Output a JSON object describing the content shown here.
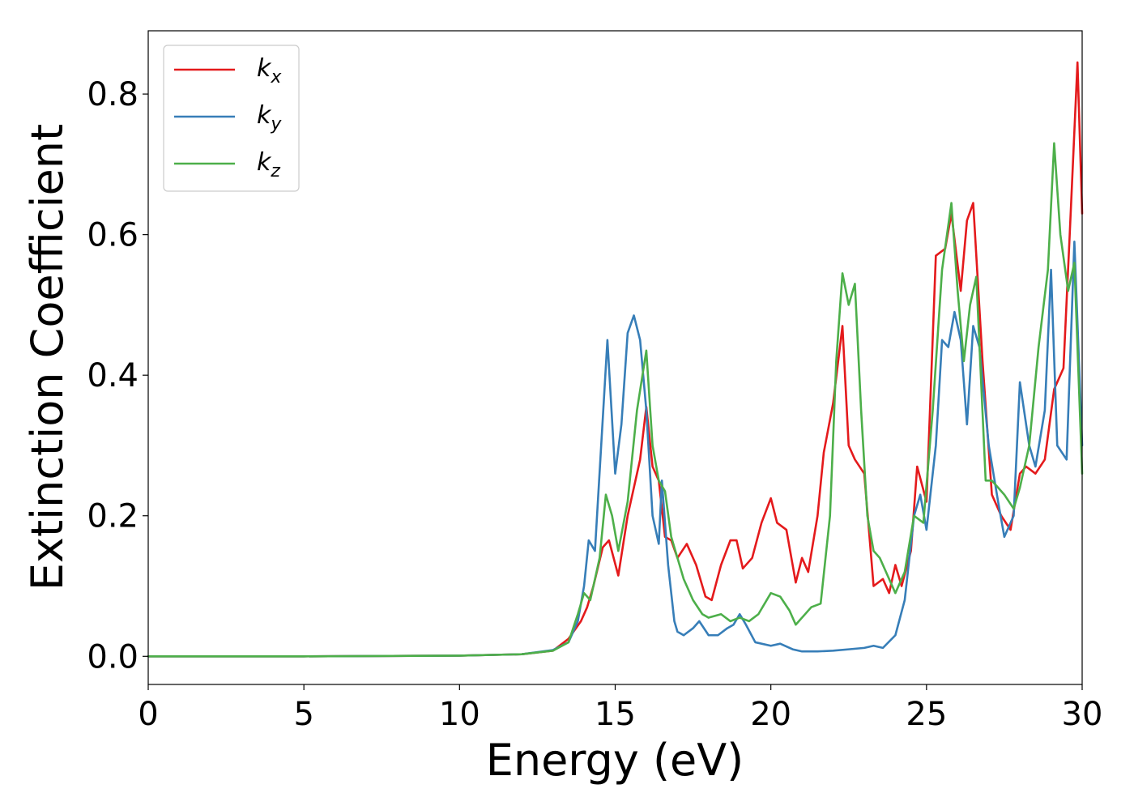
{
  "chart_data": {
    "type": "line",
    "xlabel": "Energy (eV)",
    "ylabel": "Extinction Coefficient",
    "xlim": [
      0,
      30
    ],
    "ylim": [
      -0.04,
      0.89
    ],
    "xticks": [
      0,
      5,
      10,
      15,
      20,
      25,
      30
    ],
    "xtick_labels": [
      "0",
      "5",
      "10",
      "15",
      "20",
      "25",
      "30"
    ],
    "yticks": [
      0.0,
      0.2,
      0.4,
      0.6,
      0.8
    ],
    "ytick_labels": [
      "0.0",
      "0.2",
      "0.4",
      "0.6",
      "0.8"
    ],
    "grid": false,
    "legend": "top-left",
    "series": [
      {
        "name": "k_x",
        "label_base": "k",
        "label_sub": "x",
        "color": "#e41a1c",
        "x": [
          0,
          5,
          10,
          12,
          13,
          13.5,
          13.9,
          14.1,
          14.3,
          14.6,
          14.8,
          15.1,
          15.4,
          15.8,
          16.0,
          16.2,
          16.4,
          16.6,
          16.8,
          17.0,
          17.3,
          17.6,
          17.9,
          18.1,
          18.4,
          18.7,
          18.9,
          19.1,
          19.4,
          19.7,
          20.0,
          20.2,
          20.5,
          20.8,
          21.0,
          21.2,
          21.5,
          21.7,
          22.0,
          22.3,
          22.5,
          22.7,
          23.0,
          23.3,
          23.6,
          23.8,
          24.0,
          24.2,
          24.5,
          24.7,
          25.0,
          25.3,
          25.6,
          25.8,
          26.1,
          26.3,
          26.5,
          26.8,
          27.1,
          27.4,
          27.7,
          28.0,
          28.2,
          28.5,
          28.8,
          29.1,
          29.4,
          29.6,
          29.85,
          30.0
        ],
        "y": [
          0.0,
          0.0,
          0.001,
          0.003,
          0.008,
          0.025,
          0.05,
          0.07,
          0.1,
          0.155,
          0.165,
          0.115,
          0.2,
          0.28,
          0.355,
          0.27,
          0.25,
          0.17,
          0.165,
          0.14,
          0.16,
          0.13,
          0.085,
          0.08,
          0.13,
          0.165,
          0.165,
          0.125,
          0.14,
          0.19,
          0.225,
          0.19,
          0.18,
          0.105,
          0.14,
          0.12,
          0.2,
          0.29,
          0.36,
          0.47,
          0.3,
          0.28,
          0.26,
          0.1,
          0.11,
          0.09,
          0.13,
          0.1,
          0.15,
          0.27,
          0.22,
          0.57,
          0.58,
          0.63,
          0.52,
          0.62,
          0.645,
          0.42,
          0.23,
          0.2,
          0.18,
          0.26,
          0.27,
          0.26,
          0.28,
          0.38,
          0.41,
          0.6,
          0.845,
          0.63
        ]
      },
      {
        "name": "k_y",
        "label_base": "k",
        "label_sub": "y",
        "color": "#377eb8",
        "x": [
          0,
          5,
          10,
          12,
          13,
          13.5,
          13.8,
          14.0,
          14.15,
          14.35,
          14.55,
          14.75,
          15.0,
          15.2,
          15.4,
          15.6,
          15.8,
          16.0,
          16.2,
          16.4,
          16.5,
          16.7,
          16.9,
          17.0,
          17.2,
          17.5,
          17.7,
          18.0,
          18.3,
          18.6,
          18.8,
          19.0,
          19.2,
          19.5,
          20.0,
          20.3,
          20.7,
          21.0,
          21.5,
          22.0,
          22.5,
          23.0,
          23.3,
          23.6,
          24.0,
          24.3,
          24.6,
          24.8,
          25.0,
          25.3,
          25.5,
          25.7,
          25.9,
          26.1,
          26.3,
          26.5,
          26.7,
          27.0,
          27.3,
          27.5,
          27.8,
          28.0,
          28.3,
          28.5,
          28.8,
          29.0,
          29.2,
          29.5,
          29.75,
          30.0
        ],
        "y": [
          0.0,
          0.0,
          0.001,
          0.003,
          0.009,
          0.02,
          0.05,
          0.1,
          0.165,
          0.15,
          0.3,
          0.45,
          0.26,
          0.33,
          0.46,
          0.485,
          0.45,
          0.35,
          0.2,
          0.16,
          0.25,
          0.13,
          0.05,
          0.035,
          0.03,
          0.04,
          0.05,
          0.03,
          0.03,
          0.04,
          0.045,
          0.06,
          0.045,
          0.02,
          0.015,
          0.018,
          0.01,
          0.007,
          0.007,
          0.008,
          0.01,
          0.012,
          0.015,
          0.012,
          0.03,
          0.08,
          0.2,
          0.23,
          0.18,
          0.3,
          0.45,
          0.44,
          0.49,
          0.45,
          0.33,
          0.47,
          0.44,
          0.3,
          0.22,
          0.17,
          0.2,
          0.39,
          0.3,
          0.27,
          0.35,
          0.55,
          0.3,
          0.28,
          0.59,
          0.3
        ]
      },
      {
        "name": "k_z",
        "label_base": "k",
        "label_sub": "z",
        "color": "#4daf4a",
        "x": [
          0,
          5,
          10,
          12,
          13,
          13.5,
          13.8,
          14.0,
          14.2,
          14.5,
          14.7,
          14.9,
          15.1,
          15.4,
          15.7,
          16.0,
          16.2,
          16.4,
          16.6,
          16.8,
          17.0,
          17.2,
          17.5,
          17.8,
          18.0,
          18.4,
          18.7,
          19.0,
          19.3,
          19.6,
          20.0,
          20.3,
          20.6,
          20.8,
          21.0,
          21.3,
          21.6,
          21.9,
          22.1,
          22.3,
          22.5,
          22.7,
          22.9,
          23.1,
          23.3,
          23.5,
          23.8,
          24.0,
          24.3,
          24.6,
          24.9,
          25.2,
          25.5,
          25.8,
          26.0,
          26.2,
          26.4,
          26.6,
          26.9,
          27.1,
          27.3,
          27.5,
          27.8,
          28.0,
          28.3,
          28.6,
          28.9,
          29.1,
          29.3,
          29.55,
          29.75,
          30.0
        ],
        "y": [
          0.0,
          0.0,
          0.001,
          0.003,
          0.008,
          0.02,
          0.06,
          0.09,
          0.08,
          0.14,
          0.23,
          0.2,
          0.15,
          0.22,
          0.35,
          0.435,
          0.3,
          0.25,
          0.235,
          0.17,
          0.14,
          0.11,
          0.08,
          0.06,
          0.055,
          0.06,
          0.05,
          0.055,
          0.05,
          0.06,
          0.09,
          0.085,
          0.065,
          0.045,
          0.055,
          0.07,
          0.075,
          0.2,
          0.42,
          0.545,
          0.5,
          0.53,
          0.35,
          0.2,
          0.15,
          0.14,
          0.11,
          0.09,
          0.12,
          0.2,
          0.19,
          0.35,
          0.55,
          0.645,
          0.52,
          0.42,
          0.5,
          0.54,
          0.25,
          0.25,
          0.24,
          0.23,
          0.21,
          0.24,
          0.3,
          0.44,
          0.55,
          0.73,
          0.6,
          0.52,
          0.56,
          0.26
        ]
      }
    ]
  }
}
